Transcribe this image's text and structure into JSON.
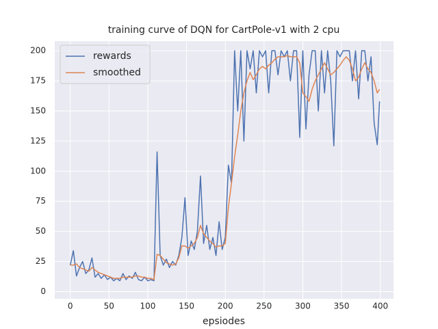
{
  "chart_data": {
    "type": "line",
    "title": "training curve of DQN for CartPole-v1 with 2 cpu",
    "x_label": "epsiodes",
    "x": [
      0,
      4,
      8,
      12,
      16,
      20,
      24,
      28,
      32,
      36,
      40,
      44,
      48,
      52,
      56,
      60,
      64,
      68,
      72,
      76,
      80,
      84,
      88,
      92,
      96,
      100,
      104,
      108,
      112,
      116,
      120,
      124,
      128,
      132,
      136,
      140,
      144,
      148,
      152,
      156,
      160,
      164,
      168,
      172,
      176,
      180,
      184,
      188,
      192,
      196,
      200,
      204,
      208,
      212,
      216,
      220,
      224,
      228,
      232,
      236,
      240,
      244,
      248,
      252,
      256,
      260,
      264,
      268,
      272,
      276,
      280,
      284,
      288,
      292,
      296,
      300,
      304,
      308,
      312,
      316,
      320,
      324,
      328,
      332,
      336,
      340,
      344,
      348,
      352,
      356,
      360,
      364,
      368,
      372,
      376,
      380,
      384,
      388,
      392,
      396,
      399
    ],
    "series": [
      {
        "name": "rewards",
        "color": "#4c72b0",
        "values": [
          22,
          34,
          13,
          20,
          25,
          15,
          18,
          28,
          12,
          15,
          11,
          14,
          10,
          12,
          9,
          11,
          9,
          15,
          10,
          13,
          11,
          16,
          10,
          9,
          12,
          9,
          10,
          9,
          116,
          30,
          22,
          27,
          20,
          25,
          22,
          30,
          45,
          78,
          30,
          42,
          35,
          50,
          96,
          40,
          55,
          35,
          45,
          30,
          58,
          35,
          45,
          105,
          90,
          200,
          150,
          200,
          125,
          200,
          185,
          200,
          165,
          200,
          195,
          200,
          165,
          200,
          200,
          180,
          200,
          195,
          200,
          175,
          200,
          200,
          128,
          200,
          135,
          180,
          200,
          200,
          150,
          200,
          165,
          200,
          175,
          121,
          200,
          195,
          200,
          200,
          200,
          175,
          200,
          160,
          200,
          200,
          175,
          195,
          140,
          122,
          158
        ]
      },
      {
        "name": "smoothed",
        "color": "#dd8452",
        "values": [
          22,
          22,
          23,
          20,
          19,
          18,
          17,
          20,
          18,
          16,
          15,
          14,
          13,
          12,
          11,
          11,
          11,
          12,
          12,
          12,
          12,
          13,
          13,
          12,
          12,
          11,
          11,
          10,
          31,
          30,
          27,
          24,
          23,
          22,
          23,
          28,
          38,
          38,
          36,
          38,
          40,
          45,
          55,
          48,
          45,
          42,
          40,
          37,
          38,
          38,
          40,
          70,
          90,
          112,
          130,
          150,
          165,
          175,
          182,
          176,
          180,
          185,
          187,
          185,
          188,
          190,
          193,
          195,
          195,
          195,
          196,
          195,
          195,
          195,
          190,
          165,
          162,
          158,
          168,
          175,
          180,
          185,
          190,
          185,
          180,
          182,
          185,
          188,
          192,
          195,
          192,
          185,
          175,
          178,
          185,
          190,
          185,
          182,
          175,
          165,
          168
        ]
      }
    ],
    "xlim": [
      -20,
      417
    ],
    "ylim": [
      -6,
      208
    ],
    "xticks": [
      0,
      50,
      100,
      150,
      200,
      250,
      300,
      350,
      400
    ],
    "yticks": [
      0,
      25,
      50,
      75,
      100,
      125,
      150,
      175,
      200
    ],
    "grid": true,
    "legend": "upper left"
  }
}
